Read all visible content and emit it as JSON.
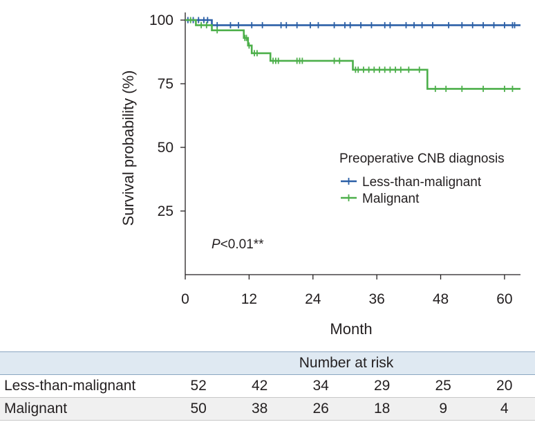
{
  "chart_data": {
    "type": "line",
    "subtype": "kaplan-meier step",
    "title": "",
    "xlabel": "Month",
    "ylabel": "Survival probability (%)",
    "xlim": [
      0,
      63
    ],
    "ylim": [
      0,
      103
    ],
    "xticks": [
      0,
      12,
      24,
      36,
      48,
      60
    ],
    "yticks": [
      25,
      50,
      75,
      100
    ],
    "grid": false,
    "annotation": "P<0.01**",
    "annotation_italic": "P",
    "annotation_rest": "<0.01**",
    "legend": {
      "title": "Preoperative CNB diagnosis",
      "placement": "center-right"
    },
    "series": [
      {
        "name": "Less-than-malignant",
        "color": "#2a5fa6",
        "steps": [
          [
            0,
            100
          ],
          [
            5,
            100
          ],
          [
            5,
            98
          ],
          [
            63,
            98
          ]
        ],
        "censor_marks": [
          0.5,
          1.5,
          2.5,
          3.5,
          4.2,
          6,
          8.5,
          10,
          12.5,
          14.5,
          18,
          19,
          21,
          23.5,
          25,
          28,
          30,
          31,
          33,
          35,
          37.5,
          38.5,
          41.5,
          43,
          44.5,
          46.5,
          49.5,
          52,
          54,
          56,
          58,
          60,
          61.5,
          61.9
        ]
      },
      {
        "name": "Malignant",
        "color": "#4caf4a",
        "steps": [
          [
            0,
            100
          ],
          [
            2,
            100
          ],
          [
            2,
            98
          ],
          [
            5,
            98
          ],
          [
            5,
            96
          ],
          [
            11,
            96
          ],
          [
            11,
            93
          ],
          [
            11.8,
            93
          ],
          [
            11.8,
            90
          ],
          [
            12.5,
            90
          ],
          [
            12.5,
            87
          ],
          [
            16,
            87
          ],
          [
            16,
            84
          ],
          [
            31.5,
            84
          ],
          [
            31.5,
            80.5
          ],
          [
            45.5,
            80.5
          ],
          [
            45.5,
            73
          ],
          [
            63,
            73
          ]
        ],
        "censor_marks": [
          1,
          3,
          4,
          6,
          11.2,
          11.5,
          12,
          13,
          13.5,
          16.5,
          17,
          17.5,
          21,
          21.5,
          22,
          28,
          29,
          32,
          32.5,
          33.5,
          34.5,
          35.5,
          36.5,
          37.5,
          38.5,
          39.5,
          40.5,
          42,
          44,
          47,
          49,
          52,
          56,
          60,
          61.5
        ]
      }
    ]
  },
  "risk_table": {
    "header": "Number at risk",
    "rows": [
      {
        "label": "Less-than-malignant",
        "values": [
          "52",
          "42",
          "34",
          "29",
          "25",
          "20"
        ]
      },
      {
        "label": "Malignant",
        "values": [
          "50",
          "38",
          "26",
          "18",
          "9",
          "4"
        ]
      }
    ]
  }
}
